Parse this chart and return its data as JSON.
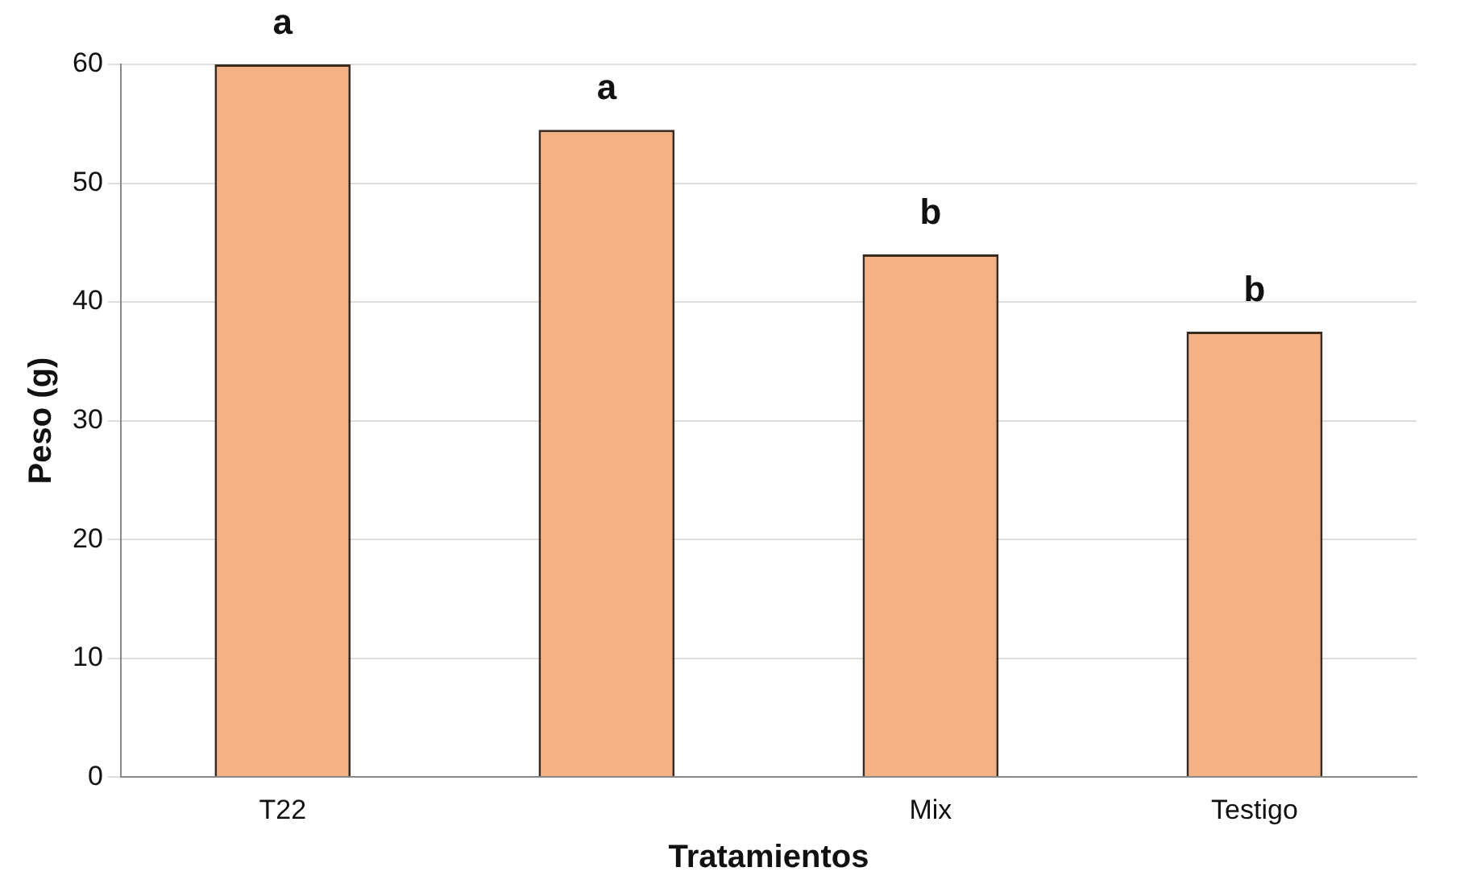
{
  "chart_data": {
    "type": "bar",
    "xlabel": "Tratamientos",
    "ylabel": "Peso (g)",
    "categories": [
      "T22",
      null,
      "Mix",
      "Testigo"
    ],
    "values": [
      60,
      54.5,
      44,
      37.5
    ],
    "color": "#f4b183",
    "ylim": [
      0,
      60
    ],
    "yticks": [
      0,
      10,
      20,
      30,
      40,
      50,
      60
    ],
    "grid": "y",
    "annotations": [
      "a",
      "a",
      "b",
      "b"
    ]
  }
}
